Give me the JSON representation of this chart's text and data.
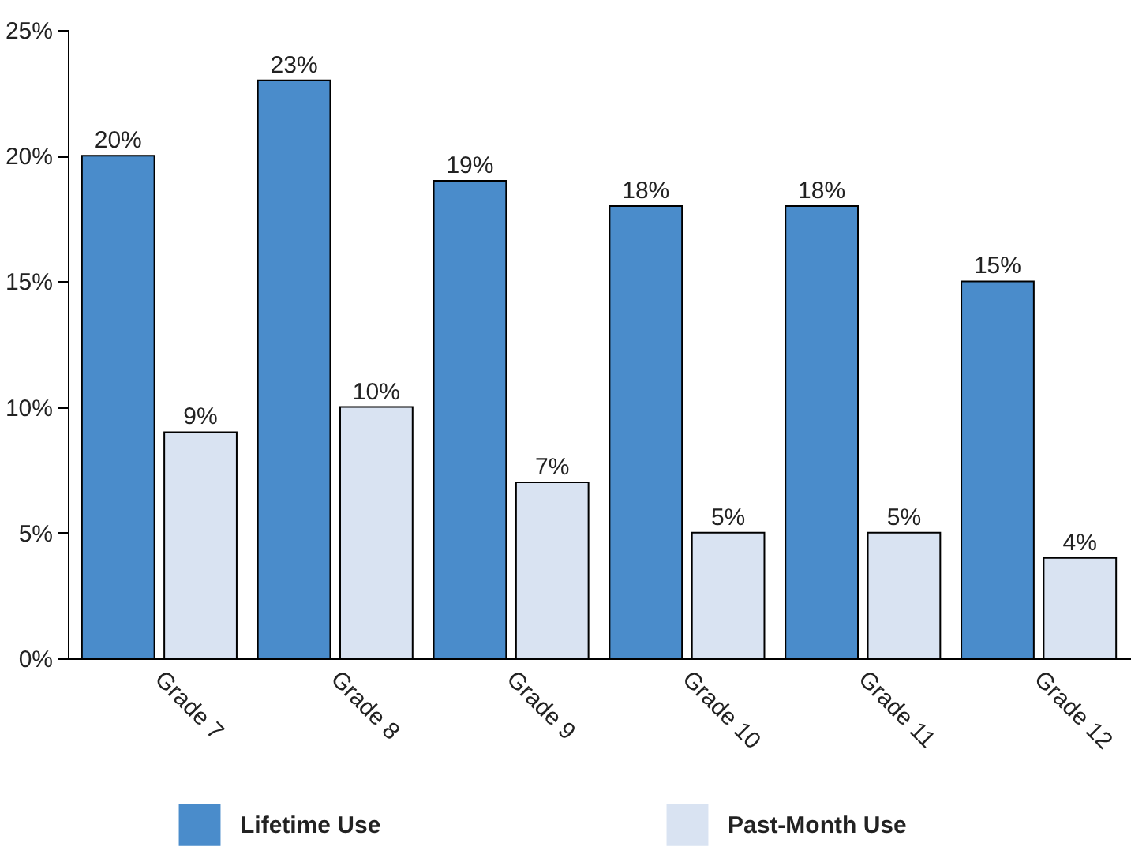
{
  "chart_data": {
    "type": "bar",
    "categories": [
      "Grade 7",
      "Grade 8",
      "Grade 9",
      "Grade 10",
      "Grade 11",
      "Grade 12"
    ],
    "series": [
      {
        "name": "Lifetime Use",
        "color": "#4a8ccb",
        "values": [
          20,
          23,
          19,
          18,
          18,
          15
        ],
        "value_labels": [
          "20%",
          "23%",
          "19%",
          "18%",
          "18%",
          "15%"
        ]
      },
      {
        "name": "Past-Month Use",
        "color": "#d9e3f2",
        "values": [
          9,
          10,
          7,
          5,
          5,
          4
        ],
        "value_labels": [
          "9%",
          "10%",
          "7%",
          "5%",
          "5%",
          "4%"
        ]
      }
    ],
    "ylim": [
      0,
      25
    ],
    "yticks": [
      {
        "value": 0,
        "label": "0%"
      },
      {
        "value": 5,
        "label": "5%"
      },
      {
        "value": 10,
        "label": "10%"
      },
      {
        "value": 15,
        "label": "15%"
      },
      {
        "value": 20,
        "label": "20%"
      },
      {
        "value": 25,
        "label": "25%"
      }
    ],
    "grid": false,
    "legend": "bottom"
  }
}
